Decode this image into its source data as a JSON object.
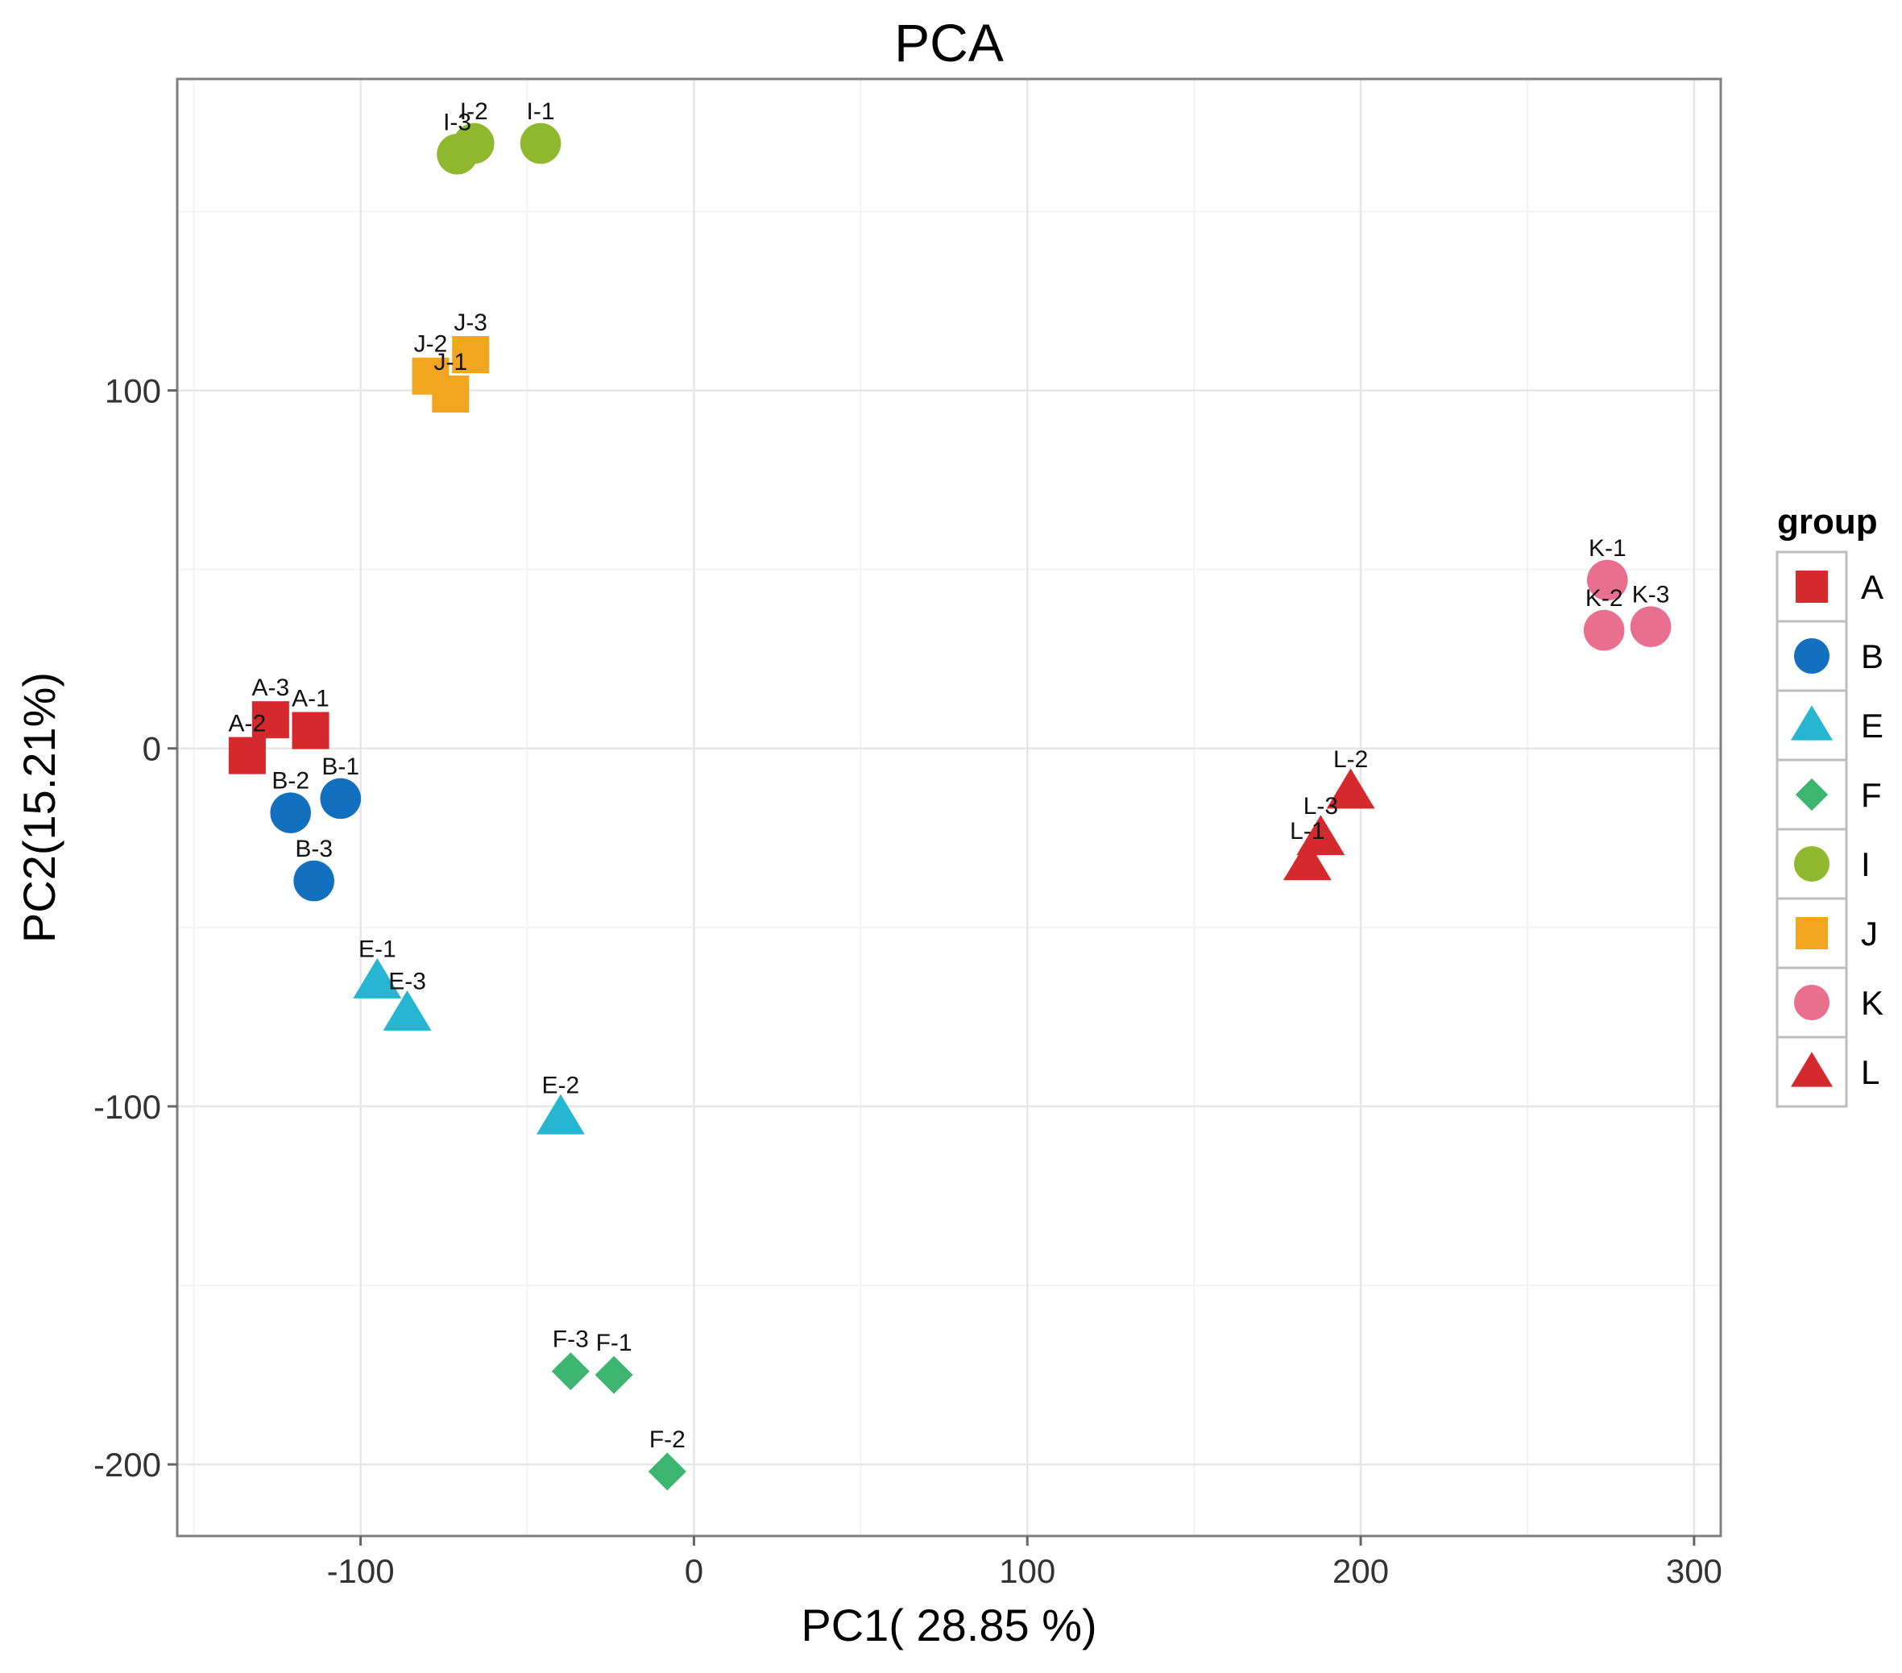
{
  "chart_data": {
    "type": "scatter",
    "title": "PCA",
    "xlabel": "PC1( 28.85 %)",
    "ylabel": "PC2(15.21%)",
    "xlim": [
      -155,
      308
    ],
    "ylim": [
      -220,
      187
    ],
    "xticks": [
      -100,
      0,
      100,
      200,
      300
    ],
    "xtick_labels": [
      "-100",
      "0",
      "100",
      "200",
      "300"
    ],
    "yticks": [
      100,
      0,
      -100,
      -200
    ],
    "ytick_labels": [
      "100",
      "0",
      "-100",
      "-200"
    ],
    "grid": true,
    "legend": {
      "title": "group",
      "position": "right",
      "entries": [
        {
          "label": "A",
          "shape": "square",
          "color": "#d42a2e"
        },
        {
          "label": "B",
          "shape": "circle",
          "color": "#1270bf"
        },
        {
          "label": "E",
          "shape": "triangle",
          "color": "#27b6d1"
        },
        {
          "label": "F",
          "shape": "diamond",
          "color": "#3bb56f"
        },
        {
          "label": "I",
          "shape": "circle",
          "color": "#8fb82e"
        },
        {
          "label": "J",
          "shape": "square",
          "color": "#f2a51f"
        },
        {
          "label": "K",
          "shape": "circle",
          "color": "#e8708e"
        },
        {
          "label": "L",
          "shape": "triangle",
          "color": "#d42a2e"
        }
      ]
    },
    "points": [
      {
        "label": "A-1",
        "group": "A",
        "x": -115,
        "y": 5
      },
      {
        "label": "A-2",
        "group": "A",
        "x": -134,
        "y": -2
      },
      {
        "label": "A-3",
        "group": "A",
        "x": -127,
        "y": 8
      },
      {
        "label": "B-1",
        "group": "B",
        "x": -106,
        "y": -14
      },
      {
        "label": "B-2",
        "group": "B",
        "x": -121,
        "y": -18
      },
      {
        "label": "B-3",
        "group": "B",
        "x": -114,
        "y": -37
      },
      {
        "label": "E-1",
        "group": "E",
        "x": -95,
        "y": -65
      },
      {
        "label": "E-2",
        "group": "E",
        "x": -40,
        "y": -103
      },
      {
        "label": "E-3",
        "group": "E",
        "x": -86,
        "y": -74
      },
      {
        "label": "F-1",
        "group": "F",
        "x": -24,
        "y": -175
      },
      {
        "label": "F-2",
        "group": "F",
        "x": -8,
        "y": -202
      },
      {
        "label": "F-3",
        "group": "F",
        "x": -37,
        "y": -174
      },
      {
        "label": "I-1",
        "group": "I",
        "x": -46,
        "y": 169
      },
      {
        "label": "I-2",
        "group": "I",
        "x": -66,
        "y": 169
      },
      {
        "label": "I-3",
        "group": "I",
        "x": -71,
        "y": 166
      },
      {
        "label": "J-1",
        "group": "J",
        "x": -73,
        "y": 99
      },
      {
        "label": "J-2",
        "group": "J",
        "x": -79,
        "y": 104
      },
      {
        "label": "J-3",
        "group": "J",
        "x": -67,
        "y": 110
      },
      {
        "label": "K-1",
        "group": "K",
        "x": 274,
        "y": 47
      },
      {
        "label": "K-2",
        "group": "K",
        "x": 273,
        "y": 33
      },
      {
        "label": "K-3",
        "group": "K",
        "x": 287,
        "y": 34
      },
      {
        "label": "L-1",
        "group": "L",
        "x": 184,
        "y": -32
      },
      {
        "label": "L-2",
        "group": "L",
        "x": 197,
        "y": -12
      },
      {
        "label": "L-3",
        "group": "L",
        "x": 188,
        "y": -25
      }
    ]
  }
}
